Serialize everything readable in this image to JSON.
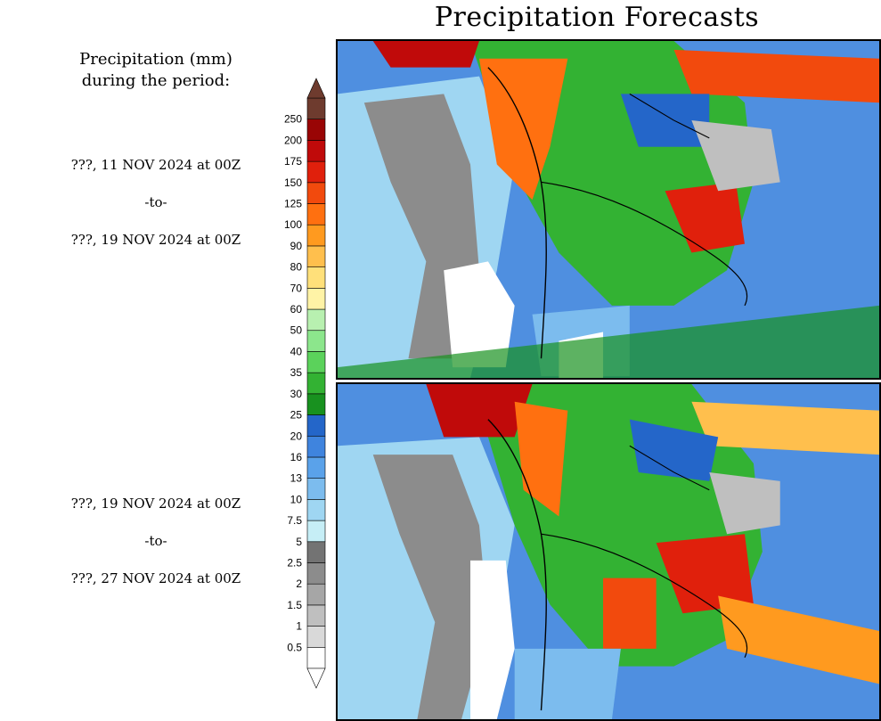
{
  "title": "Precipitation Forecasts",
  "legend_heading": {
    "line1": "Precipitation (mm)",
    "line2": "during the period:"
  },
  "periods": [
    {
      "start": "???, 11 NOV 2024 at 00Z",
      "sep": "-to-",
      "end": "???, 19 NOV 2024 at 00Z"
    },
    {
      "start": "???, 19 NOV 2024 at 00Z",
      "sep": "-to-",
      "end": "???, 27 NOV 2024 at 00Z"
    }
  ],
  "colorbar": {
    "levels": [
      "0.5",
      "1",
      "1.5",
      "2",
      "2.5",
      "5",
      "7.5",
      "10",
      "13",
      "16",
      "20",
      "25",
      "30",
      "35",
      "40",
      "50",
      "60",
      "70",
      "80",
      "90",
      "100",
      "125",
      "150",
      "175",
      "200",
      "250"
    ],
    "colors": [
      "#ffffff",
      "#d9d9d9",
      "#bfbfbf",
      "#a6a6a6",
      "#8c8c8c",
      "#737373",
      "#c6eef6",
      "#9fd6f2",
      "#7cbcee",
      "#5aa2ea",
      "#3f84de",
      "#2466c9",
      "#18911f",
      "#33b233",
      "#5bd25b",
      "#8ce68c",
      "#b8f0b0",
      "#fff3a6",
      "#ffe07a",
      "#ffbf4d",
      "#ff9a1f",
      "#ff7010",
      "#f24a0d",
      "#e0200c",
      "#c00a0a",
      "#990505",
      "#6e3b2e"
    ]
  },
  "icons": {
    "upper_arrow": "triangle-up-icon",
    "lower_arrow": "triangle-down-icon"
  },
  "maps": [
    {
      "name": "forecast-map-period-1"
    },
    {
      "name": "forecast-map-period-2"
    }
  ]
}
